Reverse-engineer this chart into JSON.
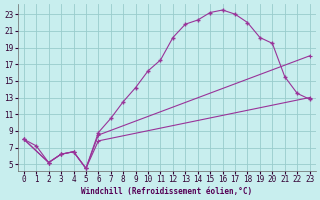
{
  "xlabel": "Windchill (Refroidissement éolien,°C)",
  "bg_color": "#c8eeee",
  "grid_color": "#99cccc",
  "line_color": "#993399",
  "xlim": [
    -0.5,
    23.5
  ],
  "ylim": [
    4.2,
    24.2
  ],
  "xticks": [
    0,
    1,
    2,
    3,
    4,
    5,
    6,
    7,
    8,
    9,
    10,
    11,
    12,
    13,
    14,
    15,
    16,
    17,
    18,
    19,
    20,
    21,
    22,
    23
  ],
  "yticks": [
    5,
    7,
    9,
    11,
    13,
    15,
    17,
    19,
    21,
    23
  ],
  "curve1_x": [
    0,
    1,
    2,
    3,
    4,
    5,
    6,
    7,
    8,
    9,
    10,
    11,
    12,
    13,
    14,
    15,
    16,
    17,
    18,
    19,
    20,
    21,
    22,
    23
  ],
  "curve1_y": [
    8.0,
    7.2,
    5.2,
    6.2,
    6.5,
    4.5,
    8.8,
    10.5,
    12.5,
    14.2,
    16.2,
    17.5,
    20.2,
    21.8,
    22.3,
    23.2,
    23.5,
    23.0,
    22.0,
    20.2,
    19.5,
    15.5,
    13.5,
    12.8
  ],
  "curve2_x": [
    0,
    2,
    3,
    4,
    5,
    6,
    23
  ],
  "curve2_y": [
    8.0,
    5.2,
    6.2,
    6.5,
    4.5,
    8.5,
    18.0
  ],
  "curve3_x": [
    0,
    2,
    3,
    4,
    5,
    6,
    23
  ],
  "curve3_y": [
    8.0,
    5.2,
    6.2,
    6.5,
    4.5,
    7.8,
    13.0
  ],
  "xlabel_color": "#550055",
  "tick_fontsize": 5.5,
  "xlabel_fontsize": 5.5
}
